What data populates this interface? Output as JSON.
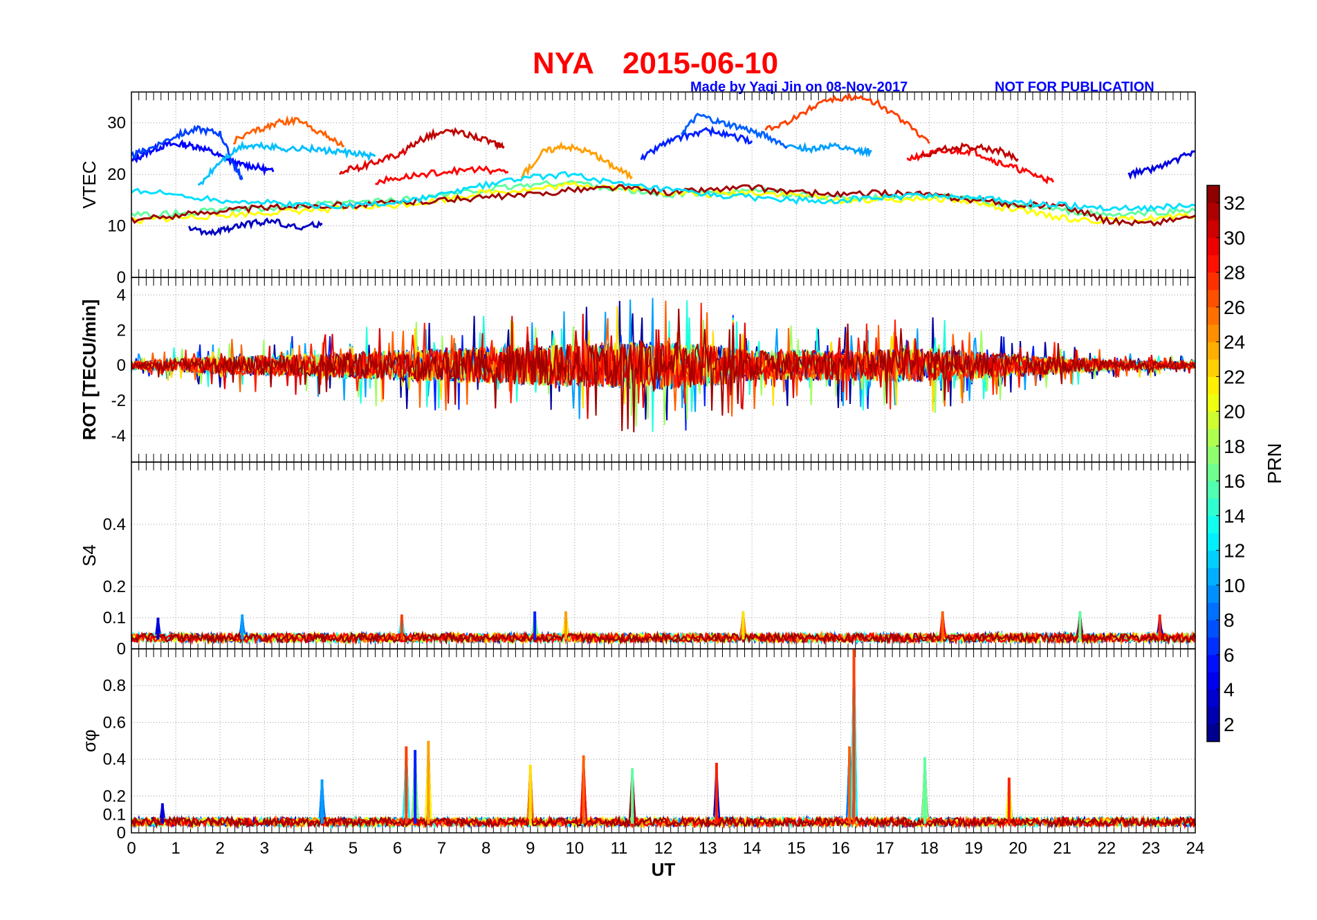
{
  "header": {
    "station": "NYA",
    "date": "2015-06-10",
    "made_by": "Made by Yaqi Jin on 08-Nov-2017",
    "notice": "NOT FOR PUBLICATION"
  },
  "colors": {
    "title": "#ff0000",
    "credit": "#0000ff",
    "grid": "#bdbdbd",
    "colormap": "jet"
  },
  "chart_data": [
    {
      "type": "line",
      "panel": "vtec",
      "ylabel": "VTEC",
      "ylim": [
        0,
        36
      ],
      "yticks": [
        0,
        10,
        20,
        30
      ],
      "xlim": [
        0,
        24
      ],
      "grid": true,
      "series": [
        {
          "prn": 5,
          "x": [
            0,
            0.4,
            0.8,
            1.2,
            1.6,
            2.0,
            2.4,
            2.8,
            3.2
          ],
          "y": [
            22.5,
            24.5,
            25.8,
            25.8,
            25.2,
            23.5,
            22.0,
            21.5,
            20.5
          ]
        },
        {
          "prn": 7,
          "x": [
            0,
            0.4,
            1.0,
            1.5,
            2.0,
            2.3,
            2.5
          ],
          "y": [
            23.5,
            25.0,
            27.5,
            28.8,
            28.0,
            22.0,
            19.0
          ]
        },
        {
          "prn": 3,
          "x": [
            1.3,
            1.8,
            2.2,
            2.7,
            3.2,
            3.8,
            4.3
          ],
          "y": [
            9.5,
            8.5,
            9.5,
            10.5,
            11.0,
            9.5,
            10.5
          ]
        },
        {
          "prn": 11,
          "x": [
            1.5,
            2.0,
            2.5,
            3.0,
            3.5,
            4.0,
            4.5,
            5.0,
            5.5
          ],
          "y": [
            17.5,
            22.5,
            25.5,
            25.5,
            25.0,
            25.0,
            24.5,
            24.0,
            23.5
          ]
        },
        {
          "prn": 26,
          "x": [
            2.3,
            2.8,
            3.3,
            3.8,
            4.3,
            4.8
          ],
          "y": [
            26.5,
            28.5,
            30.0,
            30.5,
            28.0,
            25.5
          ]
        },
        {
          "prn": 30,
          "x": [
            4.7,
            5.2,
            5.7,
            6.2
          ],
          "y": [
            20.5,
            21.5,
            23.0,
            24.5
          ]
        },
        {
          "prn": 31,
          "x": [
            6.2,
            6.7,
            7.2,
            7.7,
            8.2,
            8.4
          ],
          "y": [
            25.0,
            27.5,
            28.5,
            27.5,
            26.0,
            25.5
          ]
        },
        {
          "prn": 29,
          "x": [
            5.5,
            6.2,
            7.0,
            7.8,
            8.5
          ],
          "y": [
            18.5,
            19.5,
            20.5,
            21.0,
            20.5
          ]
        },
        {
          "prn": 24,
          "x": [
            8.8,
            9.3,
            9.8,
            10.3,
            10.8,
            11.3
          ],
          "y": [
            19.5,
            24.5,
            25.5,
            24.5,
            22.0,
            19.5
          ]
        },
        {
          "prn": 6,
          "x": [
            11.5,
            12.0,
            12.5,
            13.0,
            13.5,
            14.0
          ],
          "y": [
            23.0,
            26.0,
            27.5,
            28.5,
            27.5,
            26.5
          ]
        },
        {
          "prn": 8,
          "x": [
            12.4,
            12.8,
            13.3,
            13.8,
            14.3,
            14.8
          ],
          "y": [
            28.0,
            31.5,
            30.0,
            29.0,
            27.5,
            25.5
          ]
        },
        {
          "prn": 10,
          "x": [
            14.8,
            15.3,
            15.8,
            16.3,
            16.7
          ],
          "y": [
            25.5,
            25.0,
            25.5,
            24.5,
            24.5
          ]
        },
        {
          "prn": 27,
          "x": [
            14.3,
            15.0,
            15.6,
            16.2,
            16.8,
            17.4,
            18.0
          ],
          "y": [
            28.5,
            31.0,
            34.5,
            35.0,
            34.0,
            30.5,
            26.0
          ]
        },
        {
          "prn": 29,
          "x": [
            17.5,
            18.0,
            18.5,
            19.0,
            19.5,
            20.0,
            20.5,
            20.8
          ],
          "y": [
            23.0,
            24.0,
            24.5,
            24.5,
            22.5,
            21.0,
            19.5,
            18.5
          ]
        },
        {
          "prn": 31,
          "x": [
            17.8,
            18.4,
            19.0,
            19.6,
            20.0
          ],
          "y": [
            23.5,
            25.0,
            25.5,
            24.5,
            23.0
          ]
        },
        {
          "prn": 4,
          "x": [
            22.5,
            23.0,
            23.5,
            24.0
          ],
          "y": [
            20.0,
            21.0,
            22.5,
            24.5
          ]
        },
        {
          "prn": 16,
          "x": [
            0,
            1,
            2,
            3,
            4,
            5,
            6,
            7,
            8,
            9,
            10,
            11,
            12,
            13,
            14,
            15,
            16,
            17,
            18,
            19,
            20,
            21,
            22,
            23,
            24
          ],
          "y": [
            12,
            12.5,
            13,
            13.5,
            14,
            14.5,
            15,
            16,
            17,
            18,
            18.5,
            17,
            16,
            16.5,
            17,
            16,
            15.5,
            15.5,
            16,
            15,
            14,
            13,
            12,
            12.5,
            13
          ]
        },
        {
          "prn": 21,
          "x": [
            0,
            1,
            2,
            3,
            4,
            5,
            6,
            7,
            8,
            9,
            10,
            11,
            12,
            13,
            14,
            15,
            16,
            17,
            18,
            19,
            20,
            21,
            22,
            23,
            24
          ],
          "y": [
            11,
            11.5,
            12,
            12.5,
            13,
            13.5,
            14,
            15,
            16.5,
            17,
            18,
            17.5,
            16.5,
            16,
            16.5,
            16,
            15,
            15,
            15.5,
            14.5,
            13,
            11.5,
            11,
            11.5,
            12
          ]
        },
        {
          "prn": 32,
          "x": [
            0,
            1,
            2,
            3,
            4,
            5,
            6,
            7,
            8,
            9,
            10,
            11,
            12,
            13,
            14,
            15,
            16,
            17,
            18,
            19,
            20,
            21,
            22,
            23,
            24
          ],
          "y": [
            11,
            12,
            13,
            13.5,
            14,
            14,
            14.5,
            15,
            15.5,
            16,
            17,
            17.5,
            16.5,
            17,
            17.5,
            16.5,
            16,
            16.5,
            16,
            15,
            14,
            14,
            11,
            10.5,
            12
          ]
        },
        {
          "prn": 12,
          "x": [
            0,
            1,
            2,
            3,
            4,
            5,
            6,
            7,
            8,
            9,
            10,
            11,
            12,
            13,
            14,
            15,
            16,
            17,
            18,
            19,
            20,
            21,
            22,
            23,
            24
          ],
          "y": [
            17,
            16,
            15,
            14.5,
            14,
            14,
            14.5,
            16,
            18,
            19.5,
            20,
            18,
            17,
            16,
            15.5,
            15,
            15,
            15.5,
            16,
            15.5,
            14.5,
            14,
            13.5,
            13.5,
            14
          ]
        }
      ]
    },
    {
      "type": "line",
      "panel": "rot",
      "ylabel": "ROT [TECU/min]",
      "ylim": [
        -5.5,
        5
      ],
      "yticks": [
        -4,
        -2,
        0,
        2,
        4
      ],
      "xlim": [
        0,
        24
      ],
      "grid": true,
      "series": [
        {
          "name": "envelope-max",
          "x": [
            0,
            2,
            4,
            6,
            8,
            10,
            12,
            13,
            14,
            16,
            18,
            20,
            22,
            24
          ],
          "y": [
            0.6,
            1.5,
            1.8,
            2.5,
            3.0,
            3.5,
            4.0,
            3.5,
            2.5,
            2.5,
            2.8,
            1.8,
            0.9,
            0.5
          ]
        },
        {
          "name": "envelope-min",
          "x": [
            0,
            2,
            4,
            6,
            8,
            10,
            12,
            13,
            14,
            16,
            18,
            20,
            22,
            24
          ],
          "y": [
            -0.6,
            -1.5,
            -1.8,
            -2.5,
            -3.0,
            -3.5,
            -4.0,
            -3.5,
            -2.5,
            -2.5,
            -2.8,
            -1.8,
            -0.9,
            -0.5
          ]
        }
      ]
    },
    {
      "type": "line",
      "panel": "s4",
      "ylabel": "S4",
      "ylim": [
        0,
        0.6
      ],
      "yticks": [
        0,
        0.1,
        0.2,
        0.4
      ],
      "xlim": [
        0,
        24
      ],
      "grid": true,
      "series": [
        {
          "name": "baseline",
          "x": [
            0,
            24
          ],
          "y": [
            0.03,
            0.03
          ]
        },
        {
          "name": "peaks",
          "x": [
            0.6,
            2.5,
            6.1,
            9.1,
            9.8,
            13.8,
            18.3,
            21.4,
            23.2
          ],
          "y": [
            0.1,
            0.11,
            0.11,
            0.12,
            0.12,
            0.12,
            0.12,
            0.12,
            0.11
          ]
        }
      ]
    },
    {
      "type": "line",
      "panel": "sigma-phi",
      "ylabel": "σφ",
      "ylim": [
        0,
        1
      ],
      "yticks": [
        0,
        0.1,
        0.2,
        0.4,
        0.6,
        0.8
      ],
      "xlim": [
        0,
        24
      ],
      "xticks": [
        0,
        1,
        2,
        3,
        4,
        5,
        6,
        7,
        8,
        9,
        10,
        11,
        12,
        13,
        14,
        15,
        16,
        17,
        18,
        19,
        20,
        21,
        22,
        23,
        24
      ],
      "xlabel": "UT",
      "grid": true,
      "series": [
        {
          "name": "baseline",
          "x": [
            0,
            24
          ],
          "y": [
            0.05,
            0.05
          ]
        },
        {
          "name": "peaks",
          "x": [
            0.7,
            4.3,
            6.2,
            6.4,
            6.7,
            9.0,
            10.2,
            11.3,
            13.2,
            16.2,
            16.3,
            17.9,
            19.8
          ],
          "y": [
            0.16,
            0.29,
            0.47,
            0.45,
            0.5,
            0.37,
            0.42,
            0.35,
            0.38,
            0.47,
            1.0,
            0.41,
            0.3
          ]
        }
      ]
    }
  ],
  "colorbar": {
    "label": "PRN",
    "range": [
      1,
      33
    ],
    "ticks": [
      2,
      4,
      6,
      8,
      10,
      12,
      14,
      16,
      18,
      20,
      22,
      24,
      26,
      28,
      30,
      32
    ]
  }
}
